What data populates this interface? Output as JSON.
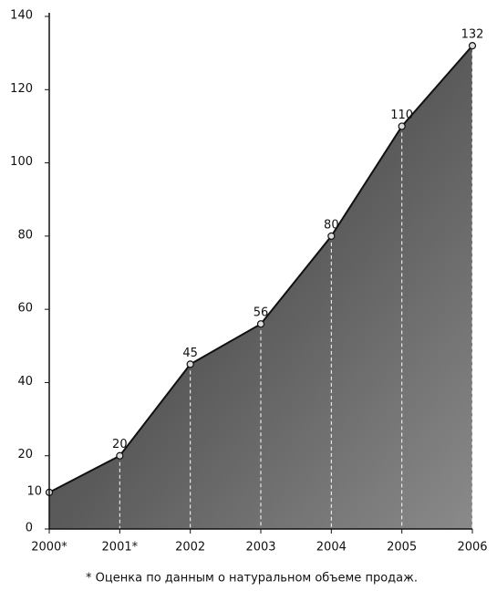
{
  "chart_data": {
    "type": "area",
    "categories": [
      "2000*",
      "2001*",
      "2002",
      "2003",
      "2004",
      "2005",
      "2006"
    ],
    "values": [
      10,
      20,
      45,
      56,
      80,
      110,
      132
    ],
    "ylim": [
      0,
      140
    ],
    "yticks": [
      0,
      20,
      40,
      60,
      80,
      100,
      120,
      140
    ],
    "color": "#555555",
    "footnote": "* Оценка по данным о натуральном объеме продаж."
  }
}
